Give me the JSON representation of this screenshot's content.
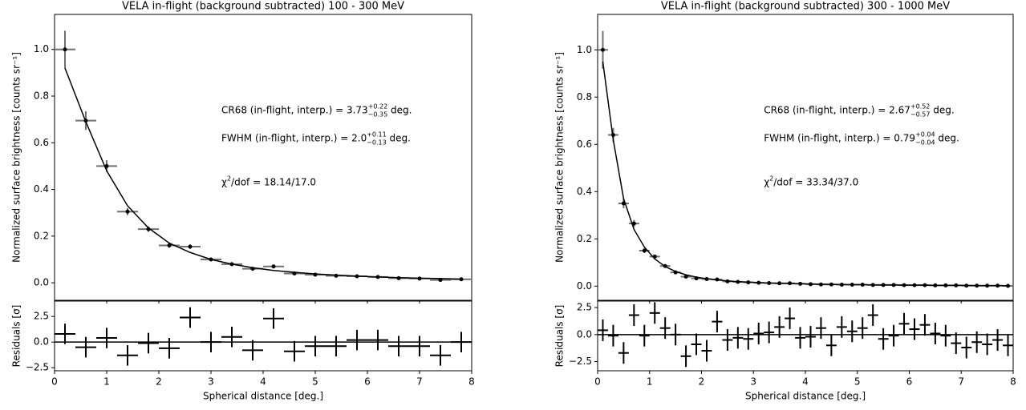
{
  "chart_data": [
    {
      "type": "errorbar",
      "title": "VELA in-flight (background subtracted) 100 - 300 MeV",
      "y_label": "Normalized surface brightness [counts sr⁻¹]",
      "x": [
        0.2,
        0.6,
        1.0,
        1.4,
        1.8,
        2.2,
        2.6,
        3.0,
        3.4,
        3.8,
        4.2,
        4.6,
        5.0,
        5.4,
        5.8,
        6.2,
        6.6,
        7.0,
        7.4,
        7.8
      ],
      "xerr": 0.2,
      "values": [
        1.0,
        0.695,
        0.5,
        0.305,
        0.23,
        0.16,
        0.155,
        0.1,
        0.08,
        0.06,
        0.07,
        0.04,
        0.035,
        0.03,
        0.028,
        0.025,
        0.02,
        0.018,
        0.012,
        0.015
      ],
      "yerr": [
        0.08,
        0.04,
        0.025,
        0.015,
        0.012,
        0.01,
        0.01,
        0.008,
        0.008,
        0.007,
        0.007,
        0.007,
        0.006,
        0.006,
        0.006,
        0.006,
        0.006,
        0.006,
        0.006,
        0.006
      ],
      "model_values": [
        0.92,
        0.69,
        0.48,
        0.33,
        0.235,
        0.17,
        0.13,
        0.1,
        0.08,
        0.065,
        0.053,
        0.045,
        0.038,
        0.033,
        0.029,
        0.025,
        0.022,
        0.02,
        0.018,
        0.016
      ],
      "color": "#707070",
      "marker_color": "#000000",
      "model_color": "#000000",
      "xlim": [
        0,
        8
      ],
      "xticks": [
        0,
        1,
        2,
        3,
        4,
        5,
        6,
        7,
        8
      ],
      "ylim": [
        -0.075,
        1.15
      ],
      "yticks": [
        {
          "value": 0,
          "label": "0.0"
        },
        0.2,
        0.4,
        0.6,
        0.8,
        {
          "value": 1,
          "label": "1.0"
        }
      ],
      "annotations": [
        [
          {
            "text": "CR68 (in-flight, interp.) = 3.73"
          },
          {
            "text": "+0.22",
            "shift": "sup"
          },
          {
            "text": "−0.35",
            "shift": "sub"
          },
          {
            "text": " deg."
          }
        ],
        [
          {
            "text": "FWHM (in-flight, interp.) = 2.0"
          },
          {
            "text": "+0.11",
            "shift": "sup"
          },
          {
            "text": "−0.13",
            "shift": "sub"
          },
          {
            "text": " deg."
          }
        ],
        [
          {
            "text": "χ"
          },
          {
            "text": "2",
            "shift": "sup"
          },
          {
            "text": "/dof = 18.14/17.0"
          }
        ]
      ]
    },
    {
      "type": "residual",
      "y_label": "Residuals [σ]",
      "x_label": "Spherical distance [deg.]",
      "x": [
        0.2,
        0.6,
        1.0,
        1.4,
        1.8,
        2.2,
        2.6,
        3.0,
        3.4,
        3.8,
        4.2,
        4.6,
        5.0,
        5.4,
        5.8,
        6.2,
        6.6,
        7.0,
        7.4,
        7.8
      ],
      "xerr": 0.2,
      "values": [
        0.8,
        -0.5,
        0.4,
        -1.3,
        -0.1,
        -0.6,
        2.4,
        0.0,
        0.5,
        -0.8,
        2.3,
        -0.9,
        -0.4,
        -0.4,
        0.2,
        0.2,
        -0.4,
        -0.4,
        -1.3,
        0.0
      ],
      "yerr": [
        1,
        1,
        1,
        1,
        1,
        1,
        1,
        1,
        1,
        1,
        1,
        1,
        1,
        1,
        1,
        1,
        1,
        1,
        1,
        1
      ],
      "reference_line": 0,
      "color": "#000000",
      "xlim": [
        0,
        8
      ],
      "xticks": [
        0,
        1,
        2,
        3,
        4,
        5,
        6,
        7,
        8
      ],
      "ylim": [
        -2.8,
        4.0
      ],
      "yticks": [
        {
          "value": -2.5,
          "label": "−2.5"
        },
        {
          "value": 0,
          "label": "0.0"
        },
        2.5
      ]
    },
    {
      "type": "errorbar",
      "title": "VELA in-flight (background subtracted) 300 - 1000 MeV",
      "y_label": "Normalized surface brightness [counts sr⁻¹]",
      "x": [
        0.1,
        0.3,
        0.5,
        0.7,
        0.9,
        1.1,
        1.3,
        1.5,
        1.7,
        1.9,
        2.1,
        2.3,
        2.5,
        2.7,
        2.9,
        3.1,
        3.3,
        3.5,
        3.7,
        3.9,
        4.1,
        4.3,
        4.5,
        4.7,
        4.9,
        5.1,
        5.3,
        5.5,
        5.7,
        5.9,
        6.1,
        6.3,
        6.5,
        6.7,
        6.9,
        7.1,
        7.3,
        7.5,
        7.7,
        7.9
      ],
      "xerr": 0.1,
      "values": [
        1.0,
        0.64,
        0.35,
        0.265,
        0.15,
        0.125,
        0.085,
        0.058,
        0.04,
        0.033,
        0.03,
        0.028,
        0.02,
        0.018,
        0.016,
        0.014,
        0.013,
        0.012,
        0.012,
        0.01,
        0.008,
        0.007,
        0.007,
        0.006,
        0.006,
        0.006,
        0.005,
        0.005,
        0.005,
        0.004,
        0.004,
        0.004,
        0.003,
        0.003,
        0.003,
        0.002,
        0.002,
        0.002,
        0.002,
        0.001
      ],
      "yerr": [
        0.08,
        0.03,
        0.02,
        0.015,
        0.01,
        0.008,
        0.006,
        0.005,
        0.004,
        0.004,
        0.003,
        0.003,
        0.003,
        0.003,
        0.003,
        0.003,
        0.003,
        0.003,
        0.003,
        0.003,
        0.003,
        0.003,
        0.003,
        0.003,
        0.003,
        0.003,
        0.003,
        0.003,
        0.003,
        0.003,
        0.003,
        0.003,
        0.003,
        0.003,
        0.003,
        0.003,
        0.003,
        0.003,
        0.003,
        0.003
      ],
      "model_values": [
        0.95,
        0.62,
        0.37,
        0.24,
        0.165,
        0.115,
        0.083,
        0.062,
        0.048,
        0.038,
        0.031,
        0.026,
        0.022,
        0.019,
        0.017,
        0.015,
        0.013,
        0.012,
        0.011,
        0.01,
        0.009,
        0.008,
        0.007,
        0.007,
        0.006,
        0.006,
        0.005,
        0.005,
        0.005,
        0.004,
        0.004,
        0.004,
        0.003,
        0.003,
        0.003,
        0.003,
        0.002,
        0.002,
        0.002,
        0.002
      ],
      "color": "#707070",
      "marker_color": "#000000",
      "model_color": "#000000",
      "xlim": [
        0,
        8
      ],
      "xticks": [
        0,
        1,
        2,
        3,
        4,
        5,
        6,
        7,
        8
      ],
      "ylim": [
        -0.06,
        1.15
      ],
      "yticks": [
        {
          "value": 0,
          "label": "0.0"
        },
        0.2,
        0.4,
        0.6,
        0.8,
        {
          "value": 1,
          "label": "1.0"
        }
      ],
      "annotations": [
        [
          {
            "text": "CR68 (in-flight, interp.) = 2.67"
          },
          {
            "text": "+0.52",
            "shift": "sup"
          },
          {
            "text": "−0.57",
            "shift": "sub"
          },
          {
            "text": " deg."
          }
        ],
        [
          {
            "text": "FWHM (in-flight, interp.) = 0.79"
          },
          {
            "text": "+0.04",
            "shift": "sup"
          },
          {
            "text": "−0.04",
            "shift": "sub"
          },
          {
            "text": " deg."
          }
        ],
        [
          {
            "text": "χ"
          },
          {
            "text": "2",
            "shift": "sup"
          },
          {
            "text": "/dof = 33.34/37.0"
          }
        ]
      ]
    },
    {
      "type": "residual",
      "y_label": "Residuals [σ]",
      "x_label": "Spherical distance [deg.]",
      "x": [
        0.1,
        0.3,
        0.5,
        0.7,
        0.9,
        1.1,
        1.3,
        1.5,
        1.7,
        1.9,
        2.1,
        2.3,
        2.5,
        2.7,
        2.9,
        3.1,
        3.3,
        3.5,
        3.7,
        3.9,
        4.1,
        4.3,
        4.5,
        4.7,
        4.9,
        5.1,
        5.3,
        5.5,
        5.7,
        5.9,
        6.1,
        6.3,
        6.5,
        6.7,
        6.9,
        7.1,
        7.3,
        7.5,
        7.7,
        7.9
      ],
      "xerr": 0.1,
      "values": [
        0.4,
        -0.1,
        -1.7,
        1.8,
        -0.1,
        2.0,
        0.6,
        0.0,
        -2.0,
        -0.9,
        -1.5,
        1.2,
        -0.5,
        -0.3,
        -0.4,
        0.1,
        0.2,
        0.7,
        1.5,
        -0.3,
        -0.2,
        0.6,
        -1.0,
        0.7,
        0.3,
        0.6,
        1.8,
        -0.4,
        -0.1,
        1.0,
        0.5,
        0.9,
        0.1,
        -0.1,
        -0.8,
        -1.2,
        -0.7,
        -0.9,
        -0.5,
        -1.0
      ],
      "yerr": [
        1,
        1,
        1,
        1,
        1,
        1,
        1,
        1,
        1,
        1,
        1,
        1,
        1,
        1,
        1,
        1,
        1,
        1,
        1,
        1,
        1,
        1,
        1,
        1,
        1,
        1,
        1,
        1,
        1,
        1,
        1,
        1,
        1,
        1,
        1,
        1,
        1,
        1,
        1,
        1
      ],
      "reference_line": 0,
      "color": "#000000",
      "xlim": [
        0,
        8
      ],
      "xticks": [
        0,
        1,
        2,
        3,
        4,
        5,
        6,
        7,
        8
      ],
      "ylim": [
        -3.35,
        3.1
      ],
      "yticks": [
        {
          "value": -2.5,
          "label": "−2.5"
        },
        {
          "value": 0,
          "label": "0.0"
        },
        2.5
      ]
    }
  ]
}
